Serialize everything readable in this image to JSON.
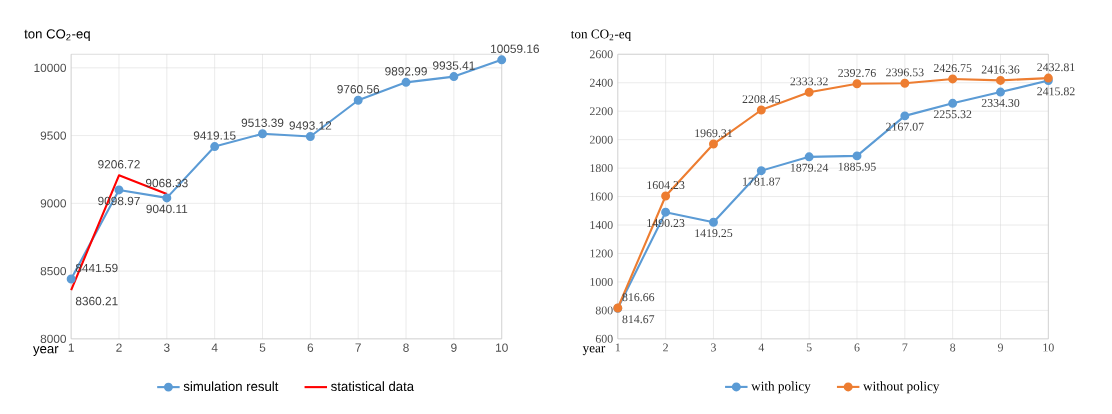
{
  "chart_data": [
    {
      "type": "line",
      "ylabel": "ton CO$_{2}$-eq",
      "xlabel": "year",
      "xlim": [
        1,
        10
      ],
      "xticks": [
        1,
        2,
        3,
        4,
        5,
        6,
        7,
        8,
        9,
        10
      ],
      "ylim": [
        8000,
        10100
      ],
      "yticks": [
        8000,
        8500,
        9000,
        9500,
        10000
      ],
      "grid": true,
      "legend": "bottom",
      "series": [
        {
          "name": "simulation result",
          "color": "#5b9bd5",
          "marker": "circle",
          "x": [
            1,
            2,
            3,
            4,
            5,
            6,
            7,
            8,
            9,
            10
          ],
          "values": [
            8441.59,
            9098.97,
            9040.11,
            9419.15,
            9513.39,
            9493.12,
            9760.56,
            9892.99,
            9935.41,
            10059.16
          ],
          "value_labels": [
            "8441.59",
            "9098.97",
            "9040.11",
            "9419.15",
            "9513.39",
            "9493.12",
            "9760.56",
            "9892.99",
            "9935.41",
            "10059.16"
          ]
        },
        {
          "name": "statistical data",
          "color": "#ff0000",
          "marker": "none",
          "x": [
            1,
            2,
            3
          ],
          "values": [
            8360.21,
            9206.72,
            9068.33
          ],
          "value_labels": [
            "8360.21",
            "9206.72",
            "9068.33"
          ]
        }
      ]
    },
    {
      "type": "line",
      "ylabel": "ton CO$_{2}$-eq",
      "xlabel": "year",
      "xlim": [
        1,
        10
      ],
      "xticks": [
        1,
        2,
        3,
        4,
        5,
        6,
        7,
        8,
        9,
        10
      ],
      "ylim": [
        600,
        2600
      ],
      "yticks": [
        600,
        800,
        1000,
        1200,
        1400,
        1600,
        1800,
        2000,
        2200,
        2400,
        2600
      ],
      "grid": true,
      "legend": "bottom",
      "series": [
        {
          "name": "with policy",
          "color": "#5b9bd5",
          "marker": "circle",
          "x": [
            1,
            2,
            3,
            4,
            5,
            6,
            7,
            8,
            9,
            10
          ],
          "values": [
            814.67,
            1490.23,
            1419.25,
            1781.87,
            1879.24,
            1885.95,
            2167.07,
            2255.32,
            2334.3,
            2415.82
          ],
          "value_labels": [
            "814.67",
            "1490.23",
            "1419.25",
            "1781.87",
            "1879.24",
            "1885.95",
            "2167.07",
            "2255.32",
            "2334.30",
            "2415.82"
          ]
        },
        {
          "name": "without policy",
          "color": "#ed7d31",
          "marker": "circle",
          "x": [
            1,
            2,
            3,
            4,
            5,
            6,
            7,
            8,
            9,
            10
          ],
          "values": [
            816.66,
            1604.23,
            1969.31,
            2208.45,
            2333.32,
            2392.76,
            2396.53,
            2426.75,
            2416.36,
            2432.81
          ],
          "value_labels": [
            "816.66",
            "1604.23",
            "1969.31",
            "2208.45",
            "2333.32",
            "2392.76",
            "2396.53",
            "2426.75",
            "2416.36",
            "2432.81"
          ]
        }
      ]
    }
  ]
}
